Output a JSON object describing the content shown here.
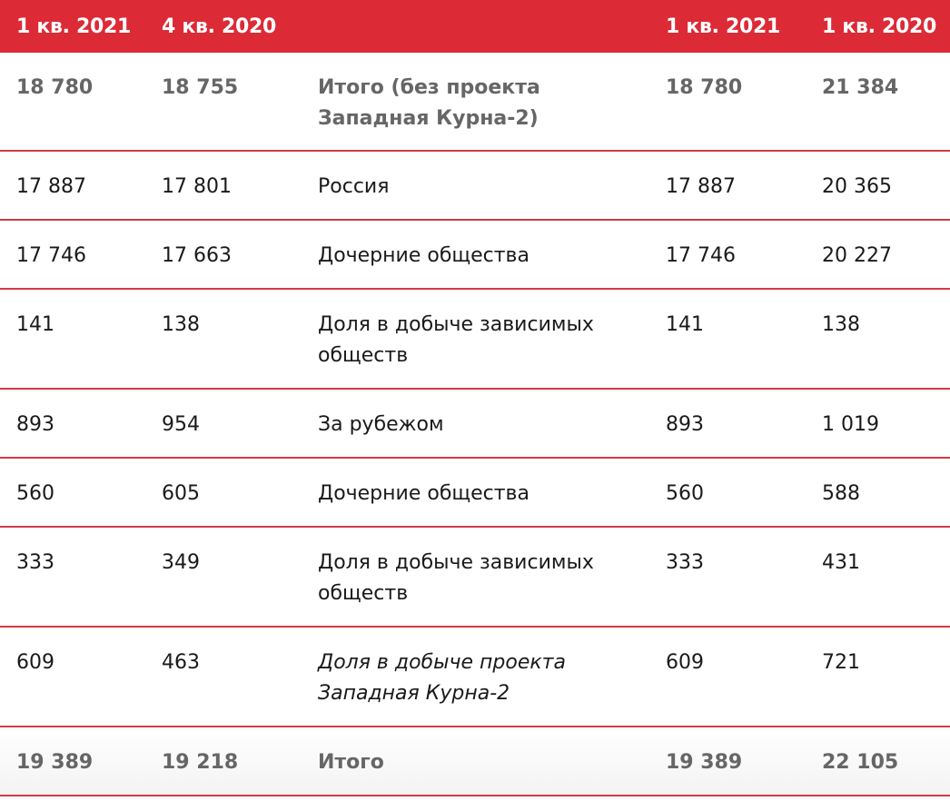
{
  "header": {
    "col1": "1 кв. 2021",
    "col2": "4 кв. 2020",
    "col3": "",
    "col4": "1 кв. 2021",
    "col5": "1 кв. 2020"
  },
  "rows": [
    {
      "c1": "18 780",
      "c2": "18 755",
      "label": "Итого (без проекта Западная Курна-2)",
      "c4": "18 780",
      "c5": "21 384"
    },
    {
      "c1": "17 887",
      "c2": "17 801",
      "label": "Россия",
      "c4": "17 887",
      "c5": "20 365"
    },
    {
      "c1": "17 746",
      "c2": "17 663",
      "label": "Дочерние общества",
      "c4": "17 746",
      "c5": "20 227"
    },
    {
      "c1": "141",
      "c2": "138",
      "label": "Доля в добыче зависимых обществ",
      "c4": "141",
      "c5": "138"
    },
    {
      "c1": "893",
      "c2": "954",
      "label": "За рубежом",
      "c4": "893",
      "c5": "1 019"
    },
    {
      "c1": "560",
      "c2": "605",
      "label": "Дочерние общества",
      "c4": "560",
      "c5": "588"
    },
    {
      "c1": "333",
      "c2": "349",
      "label": "Доля в добыче зависимых обществ",
      "c4": "333",
      "c5": "431"
    },
    {
      "c1": "609",
      "c2": "463",
      "label": "Доля в добыче проекта Западная Курна-2",
      "c4": "609",
      "c5": "721"
    },
    {
      "c1": "19 389",
      "c2": "19 218",
      "label": "Итого",
      "c4": "19 389",
      "c5": "22 105"
    }
  ],
  "colors": {
    "header_bg": "#dc2a36",
    "row_border": "#d33a45",
    "bold_text": "#666666"
  }
}
